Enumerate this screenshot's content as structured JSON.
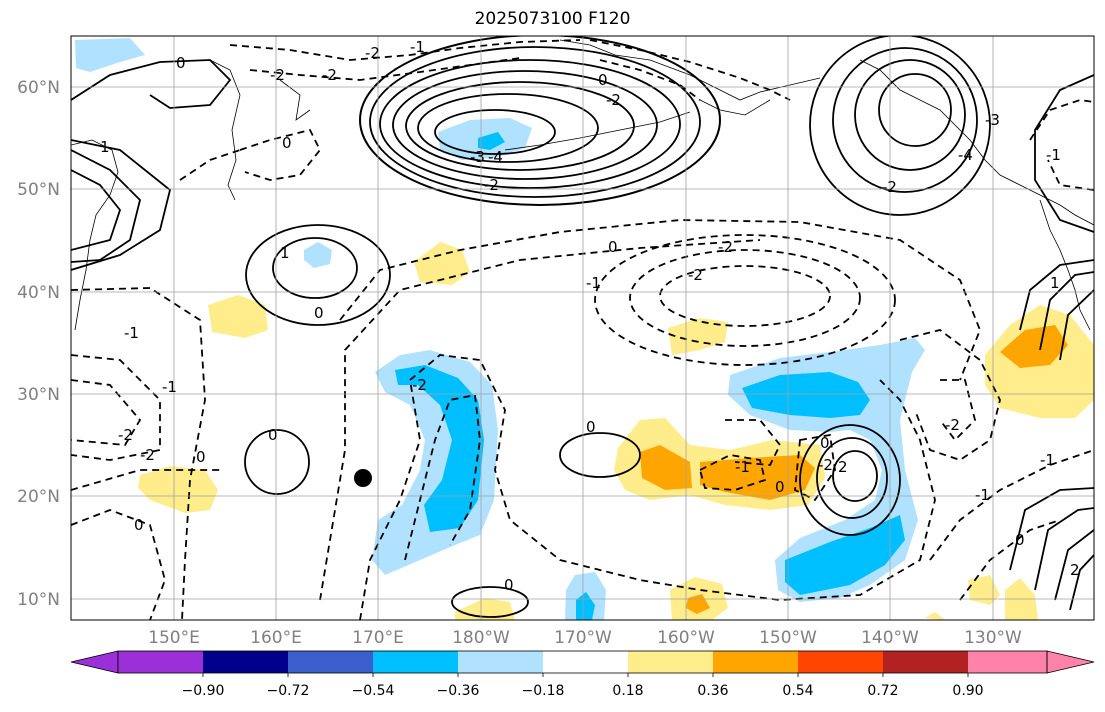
{
  "title": "2025073100 F120",
  "map": {
    "lat_labels": [
      "60°N",
      "50°N",
      "40°N",
      "30°N",
      "20°N",
      "10°N"
    ],
    "lon_labels": [
      "150°E",
      "160°E",
      "170°E",
      "180°W",
      "170°W",
      "160°W",
      "150°W",
      "140°W",
      "130°W"
    ],
    "grid": true,
    "marker": {
      "label": "storm-position"
    }
  },
  "colorbar": {
    "tick_labels": [
      "−0.90",
      "−0.72",
      "−0.54",
      "−0.36",
      "−0.18",
      "0.18",
      "0.36",
      "0.54",
      "0.72",
      "0.90"
    ],
    "colors": [
      "#9b30d9",
      "#00008b",
      "#3a5fcd",
      "#00bfff",
      "#b0e2ff",
      "#ffffff",
      "#ffec8b",
      "#ffa500",
      "#ff4500",
      "#b22222",
      "#ff82ab"
    ],
    "extend": "both"
  },
  "contour_labels": {
    "north_pacific_high": [
      "-2",
      "-3",
      "-4",
      "-2",
      "0",
      "-2"
    ],
    "gulf_alaska_low": [
      "-4",
      "-3",
      "-2"
    ],
    "central_trough": [
      "0",
      "-2",
      "-2",
      "-1"
    ],
    "west_low": [
      "1",
      "0",
      "-1"
    ],
    "misc": [
      "0",
      "-2",
      "-2",
      "-1",
      "0",
      "0",
      "-2",
      "0",
      "-1",
      "0",
      "-2",
      "-2",
      "0",
      "-1",
      "0",
      "-2",
      "0",
      "-1",
      "-2",
      "2",
      "2",
      "-1",
      "1",
      "0",
      "-1",
      "1",
      "0"
    ]
  }
}
